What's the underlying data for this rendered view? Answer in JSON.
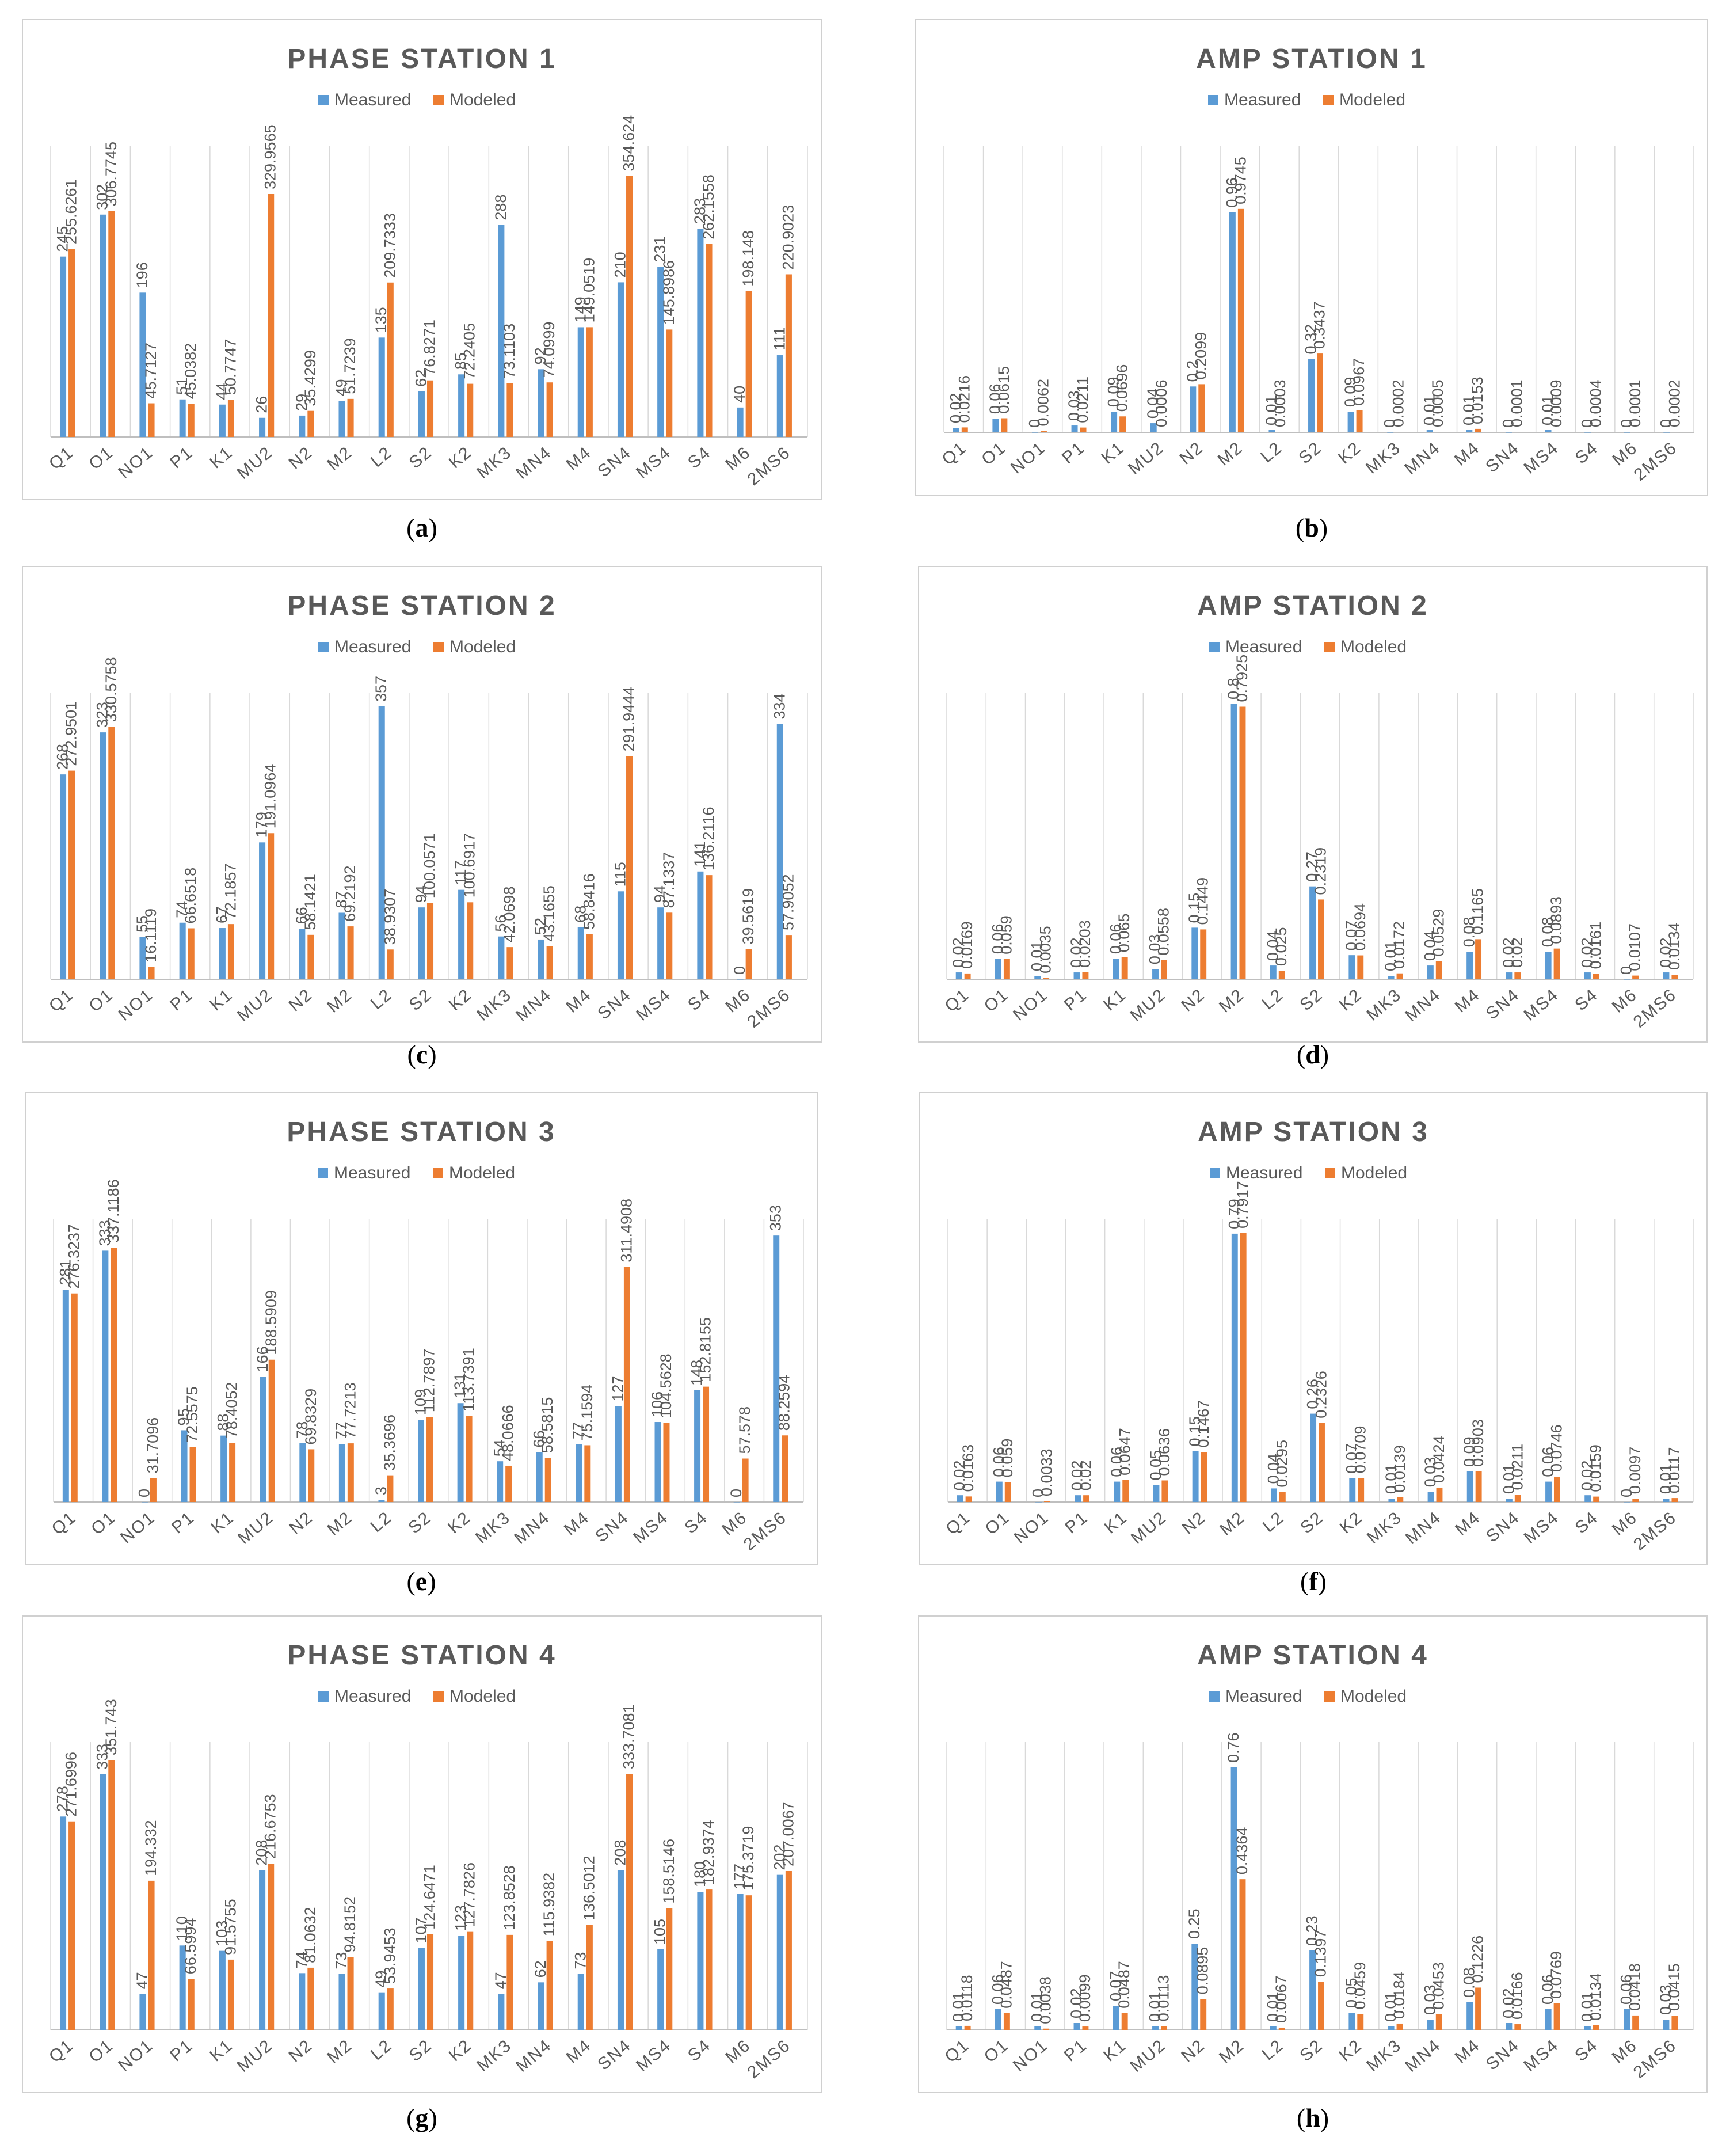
{
  "legend": {
    "measured": "Measured",
    "modeled": "Modeled"
  },
  "colors": {
    "measured": "#5b9bd5",
    "modeled": "#ed7d31",
    "text": "#595959",
    "title": "#595959",
    "grid": "#d9d9d9",
    "border": "#d0d0d0"
  },
  "chart_data": [
    {
      "id": "a",
      "caption": "a",
      "type": "bar",
      "title": "PHASE STATION 1",
      "categories": [
        "Q1",
        "O1",
        "NO1",
        "P1",
        "K1",
        "MU2",
        "N2",
        "M2",
        "L2",
        "S2",
        "K2",
        "MK3",
        "MN4",
        "M4",
        "SN4",
        "MS4",
        "S4",
        "M6",
        "2MS6"
      ],
      "ylim": [
        0,
        380
      ],
      "grid": false,
      "legend_position": "top",
      "series": [
        {
          "name": "Measured",
          "values": [
            245,
            302,
            196,
            51,
            44,
            26,
            29,
            49,
            135,
            62,
            85,
            288,
            92,
            149,
            210,
            231,
            283,
            40,
            111
          ],
          "labels": [
            "245",
            "302",
            "196",
            "51",
            "44",
            "26",
            "29",
            "49",
            "135",
            "62",
            "85",
            "288",
            "92",
            "149",
            "210",
            "231",
            "283",
            "40",
            "111"
          ]
        },
        {
          "name": "Modeled",
          "values": [
            255.6261,
            306.7745,
            45.7127,
            45.0382,
            50.7747,
            329.9565,
            35.4299,
            51.7239,
            209.7333,
            76.8271,
            72.2405,
            73.1103,
            74.0999,
            149.0519,
            354.624,
            145.8986,
            262.1558,
            198.148,
            220.9023
          ],
          "labels": [
            "255.6261",
            "306.7745",
            "45.7127",
            "45.0382",
            "50.7747",
            "329.9565",
            "35.4299",
            "51.7239",
            "209.7333",
            "76.8271",
            "72.2405",
            "73.1103",
            "74.0999",
            "149.0519",
            "354.624",
            "145.8986",
            "262.1558",
            "198.148",
            "220.9023"
          ]
        }
      ]
    },
    {
      "id": "b",
      "caption": "b",
      "type": "bar",
      "title": "AMP STATION 1",
      "categories": [
        "Q1",
        "O1",
        "NO1",
        "P1",
        "K1",
        "MU2",
        "N2",
        "M2",
        "L2",
        "S2",
        "K2",
        "MK3",
        "MN4",
        "M4",
        "SN4",
        "MS4",
        "S4",
        "M6",
        "2MS6"
      ],
      "ylim": [
        0,
        1.2
      ],
      "grid": false,
      "legend_position": "top",
      "series": [
        {
          "name": "Measured",
          "values": [
            0.02,
            0.06,
            0,
            0.03,
            0.09,
            0.04,
            0.2,
            0.96,
            0.01,
            0.32,
            0.09,
            0,
            0.01,
            0.01,
            0,
            0.01,
            0,
            0,
            0
          ],
          "labels": [
            "0.02",
            "0.06",
            "0",
            "0.03",
            "0.09",
            "0.04",
            "0.2",
            "0.96",
            "0.01",
            "0.32",
            "0.09",
            "0",
            "0.01",
            "0.01",
            "0",
            "0.01",
            "0",
            "0",
            "0"
          ]
        },
        {
          "name": "Modeled",
          "values": [
            0.0216,
            0.0615,
            0.0062,
            0.0211,
            0.0696,
            0.0006,
            0.2099,
            0.9745,
            0.0003,
            0.3437,
            0.0967,
            0.0002,
            0.0005,
            0.0153,
            0.0001,
            0.0009,
            0.0004,
            0.0001,
            0.0002
          ],
          "labels": [
            "0.0216",
            "0.0615",
            "0.0062",
            "0.0211",
            "0.0696",
            "0.0006",
            "0.2099",
            "0.9745",
            "0.0003",
            "0.3437",
            "0.0967",
            "0.0002",
            "0.0005",
            "0.0153",
            "0.0001",
            "0.0009",
            "0.0004",
            "0.0001",
            "0.0002"
          ]
        }
      ]
    },
    {
      "id": "c",
      "caption": "c",
      "type": "bar",
      "title": "PHASE STATION 2",
      "categories": [
        "Q1",
        "O1",
        "NO1",
        "P1",
        "K1",
        "MU2",
        "N2",
        "M2",
        "L2",
        "S2",
        "K2",
        "MK3",
        "MN4",
        "M4",
        "SN4",
        "MS4",
        "S4",
        "M6",
        "2MS6"
      ],
      "ylim": [
        0,
        360
      ],
      "grid": false,
      "legend_position": "top",
      "series": [
        {
          "name": "Measured",
          "values": [
            268,
            323,
            55,
            74,
            67,
            179,
            66,
            87,
            357,
            94,
            117,
            56,
            52,
            68,
            115,
            94,
            141,
            0,
            334
          ],
          "labels": [
            "268",
            "323",
            "55",
            "74",
            "67",
            "179",
            "66",
            "87",
            "357",
            "94",
            "117",
            "56",
            "52",
            "68",
            "115",
            "94",
            "141",
            "0",
            "334"
          ]
        },
        {
          "name": "Modeled",
          "values": [
            272.9501,
            330.5758,
            16.1119,
            66.6518,
            72.1857,
            191.0964,
            58.1421,
            69.2192,
            38.9307,
            100.0571,
            100.6917,
            42.0698,
            43.1655,
            58.8416,
            291.9444,
            87.1337,
            136.2116,
            39.5619,
            57.9052
          ],
          "labels": [
            "272.9501",
            "330.5758",
            "16.1119",
            "66.6518",
            "72.1857",
            "191.0964",
            "58.1421",
            "69.2192",
            "38.9307",
            "100.0571",
            "100.6917",
            "42.0698",
            "43.1655",
            "58.8416",
            "291.9444",
            "87.1337",
            "136.2116",
            "39.5619",
            "57.9052"
          ]
        }
      ]
    },
    {
      "id": "d",
      "caption": "d",
      "type": "bar",
      "title": "AMP STATION 2",
      "categories": [
        "Q1",
        "O1",
        "NO1",
        "P1",
        "K1",
        "MU2",
        "N2",
        "M2",
        "L2",
        "S2",
        "K2",
        "MK3",
        "MN4",
        "M4",
        "SN4",
        "MS4",
        "S4",
        "M6",
        "2MS6"
      ],
      "ylim": [
        0,
        0.8
      ],
      "grid": false,
      "legend_position": "top",
      "series": [
        {
          "name": "Measured",
          "values": [
            0.02,
            0.06,
            0.01,
            0.02,
            0.06,
            0.03,
            0.15,
            0.8,
            0.04,
            0.27,
            0.07,
            0.01,
            0.04,
            0.08,
            0.02,
            0.08,
            0.02,
            0,
            0.02
          ],
          "labels": [
            "0.02",
            "0.06",
            "0.01",
            "0.02",
            "0.06",
            "0.03",
            "0.15",
            "0.8",
            "0.04",
            "0.27",
            "0.07",
            "0.01",
            "0.04",
            "0.08",
            "0.02",
            "0.08",
            "0.02",
            "0",
            "0.02"
          ]
        },
        {
          "name": "Modeled",
          "values": [
            0.0169,
            0.059,
            0.0035,
            0.0203,
            0.065,
            0.0558,
            0.1449,
            0.7925,
            0.025,
            0.2319,
            0.0694,
            0.0172,
            0.0529,
            0.1165,
            0.02,
            0.0893,
            0.0161,
            0.0107,
            0.0134
          ],
          "labels": [
            "0.0169",
            "0.059",
            "0.0035",
            "0.0203",
            "0.065",
            "0.0558",
            "0.1449",
            "0.7925",
            "0.025",
            "0.2319",
            "0.0694",
            "0.0172",
            "0.0529",
            "0.1165",
            "0.02",
            "0.0893",
            "0.0161",
            "0.0107",
            "0.0134"
          ]
        }
      ]
    },
    {
      "id": "e",
      "caption": "e",
      "type": "bar",
      "title": "PHASE STATION 3",
      "categories": [
        "Q1",
        "O1",
        "NO1",
        "P1",
        "K1",
        "MU2",
        "N2",
        "M2",
        "L2",
        "S2",
        "K2",
        "MK3",
        "MN4",
        "M4",
        "SN4",
        "MS4",
        "S4",
        "M6",
        "2MS6"
      ],
      "ylim": [
        0,
        360
      ],
      "grid": false,
      "legend_position": "top",
      "series": [
        {
          "name": "Measured",
          "values": [
            281,
            333,
            0,
            95,
            88,
            166,
            78,
            77,
            3,
            109,
            131,
            54,
            66,
            77,
            127,
            106,
            148,
            0,
            353
          ],
          "labels": [
            "281",
            "333",
            "0",
            "95",
            "88",
            "166",
            "78",
            "77",
            "3",
            "109",
            "131",
            "54",
            "66",
            "77",
            "127",
            "106",
            "148",
            "0",
            "353"
          ]
        },
        {
          "name": "Modeled",
          "values": [
            276.3237,
            337.1186,
            31.7096,
            72.5575,
            78.4052,
            188.5909,
            69.8329,
            77.7213,
            35.3696,
            112.7897,
            113.7391,
            48.0666,
            58.5815,
            75.1594,
            311.4908,
            104.5628,
            152.8155,
            57.578,
            88.2594
          ],
          "labels": [
            "276.3237",
            "337.1186",
            "31.7096",
            "72.5575",
            "78.4052",
            "188.5909",
            "69.8329",
            "77.7213",
            "35.3696",
            "112.7897",
            "113.7391",
            "48.0666",
            "58.5815",
            "75.1594",
            "311.4908",
            "104.5628",
            "152.8155",
            "57.578",
            "88.2594"
          ]
        }
      ]
    },
    {
      "id": "f",
      "caption": "f",
      "type": "bar",
      "title": "AMP STATION 3",
      "categories": [
        "Q1",
        "O1",
        "NO1",
        "P1",
        "K1",
        "MU2",
        "N2",
        "M2",
        "L2",
        "S2",
        "K2",
        "MK3",
        "MN4",
        "M4",
        "SN4",
        "MS4",
        "S4",
        "M6",
        "2MS6"
      ],
      "ylim": [
        0,
        0.8
      ],
      "grid": false,
      "legend_position": "top",
      "series": [
        {
          "name": "Measured",
          "values": [
            0.02,
            0.06,
            0,
            0.02,
            0.06,
            0.05,
            0.15,
            0.79,
            0.04,
            0.26,
            0.07,
            0.01,
            0.03,
            0.09,
            0.01,
            0.06,
            0.02,
            0,
            0.01
          ],
          "labels": [
            "0.02",
            "0.06",
            "0",
            "0.02",
            "0.06",
            "0.05",
            "0.15",
            "0.79",
            "0.04",
            "0.26",
            "0.07",
            "0.01",
            "0.03",
            "0.09",
            "0.01",
            "0.06",
            "0.02",
            "0",
            "0.01"
          ]
        },
        {
          "name": "Modeled",
          "values": [
            0.0163,
            0.059,
            0.0033,
            0.02,
            0.0647,
            0.0636,
            0.1467,
            0.7917,
            0.0295,
            0.2326,
            0.0709,
            0.0139,
            0.0424,
            0.0903,
            0.0211,
            0.0746,
            0.0159,
            0.0097,
            0.0117
          ],
          "labels": [
            "0.0163",
            "0.059",
            "0.0033",
            "0.02",
            "0.0647",
            "0.0636",
            "0.1467",
            "0.7917",
            "0.0295",
            "0.2326",
            "0.0709",
            "0.0139",
            "0.0424",
            "0.0903",
            "0.0211",
            "0.0746",
            "0.0159",
            "0.0097",
            "0.0117"
          ]
        }
      ]
    },
    {
      "id": "g",
      "caption": "g",
      "type": "bar",
      "title": "PHASE STATION 4",
      "categories": [
        "Q1",
        "O1",
        "NO1",
        "P1",
        "K1",
        "MU2",
        "N2",
        "M2",
        "L2",
        "S2",
        "K2",
        "MK3",
        "MN4",
        "M4",
        "SN4",
        "MS4",
        "S4",
        "M6",
        "2MS6"
      ],
      "ylim": [
        0,
        360
      ],
      "grid": false,
      "legend_position": "top",
      "series": [
        {
          "name": "Measured",
          "values": [
            278,
            333,
            47,
            110,
            103,
            208,
            74,
            73,
            49,
            107,
            123,
            47,
            62,
            73,
            208,
            105,
            180,
            177,
            202
          ],
          "labels": [
            "278",
            "333",
            "47",
            "110",
            "103",
            "208",
            "74",
            "73",
            "49",
            "107",
            "123",
            "47",
            "62",
            "73",
            "208",
            "105",
            "180",
            "177",
            "202"
          ]
        },
        {
          "name": "Modeled",
          "values": [
            271.6996,
            351.743,
            194.332,
            66.5994,
            91.5755,
            216.6753,
            81.0632,
            94.8152,
            53.9453,
            124.6471,
            127.7826,
            123.8528,
            115.9382,
            136.5012,
            333.7081,
            158.5146,
            182.9374,
            175.3719,
            207.0067
          ],
          "labels": [
            "271.6996",
            "351.743",
            "194.332",
            "66.5994",
            "91.5755",
            "216.6753",
            "81.0632",
            "94.8152",
            "53.9453",
            "124.6471",
            "127.7826",
            "123.8528",
            "115.9382",
            "136.5012",
            "333.7081",
            "158.5146",
            "182.9374",
            "175.3719",
            "207.0067"
          ]
        }
      ]
    },
    {
      "id": "h",
      "caption": "h",
      "type": "bar",
      "title": "AMP STATION 4",
      "categories": [
        "Q1",
        "O1",
        "NO1",
        "P1",
        "K1",
        "MU2",
        "N2",
        "M2",
        "L2",
        "S2",
        "K2",
        "MK3",
        "MN4",
        "M4",
        "SN4",
        "MS4",
        "S4",
        "M6",
        "2MS6"
      ],
      "ylim": [
        0,
        0.8
      ],
      "grid": false,
      "legend_position": "top",
      "series": [
        {
          "name": "Measured",
          "values": [
            0.01,
            0.06,
            0.01,
            0.02,
            0.07,
            0.01,
            0.25,
            0.76,
            0.01,
            0.23,
            0.05,
            0.01,
            0.03,
            0.08,
            0.02,
            0.06,
            0.01,
            0.06,
            0.03
          ],
          "labels": [
            "0.01",
            "0.06",
            "0.01",
            "0.02",
            "0.07",
            "0.01",
            "0.25",
            "0.76",
            "0.01",
            "0.23",
            "0.05",
            "0.01",
            "0.03",
            "0.08",
            "0.02",
            "0.06",
            "0.01",
            "0.06",
            "0.03"
          ]
        },
        {
          "name": "Modeled",
          "values": [
            0.0118,
            0.0487,
            0.0038,
            0.0099,
            0.0487,
            0.0113,
            0.0895,
            0.4364,
            0.0067,
            0.1397,
            0.0459,
            0.0184,
            0.0453,
            0.1226,
            0.0166,
            0.0769,
            0.0134,
            0.0418,
            0.0415
          ],
          "labels": [
            "0.0118",
            "0.0487",
            "0.0038",
            "0.0099",
            "0.0487",
            "0.0113",
            "0.0895",
            "0.4364",
            "0.0067",
            "0.1397",
            "0.0459",
            "0.0184",
            "0.0453",
            "0.1226",
            "0.0166",
            "0.0769",
            "0.0134",
            "0.0418",
            "0.0415"
          ]
        }
      ]
    }
  ]
}
